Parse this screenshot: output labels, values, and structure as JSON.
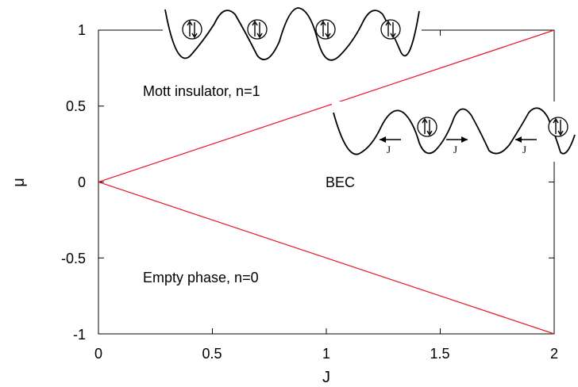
{
  "chart_data": {
    "type": "line",
    "xlabel": "J",
    "ylabel": "μ",
    "xlim": [
      0,
      2
    ],
    "ylim": [
      -1,
      1
    ],
    "xticks": [
      "0",
      "0.5",
      "1",
      "1.5",
      "2"
    ],
    "yticks": [
      "1",
      "0.5",
      "0",
      "-0.5",
      "-1"
    ],
    "grid": false,
    "series": [
      {
        "x": [
          0,
          2
        ],
        "y": [
          0,
          1
        ],
        "color": "#e8141e"
      },
      {
        "x": [
          0,
          2
        ],
        "y": [
          0,
          -1
        ],
        "color": "#e8141e"
      }
    ],
    "annotations": {
      "mott": "Mott insulator, n=1",
      "bec": "BEC",
      "empty": "Empty phase, n=0"
    },
    "hop_labels": [
      "J",
      "J",
      "J"
    ]
  }
}
